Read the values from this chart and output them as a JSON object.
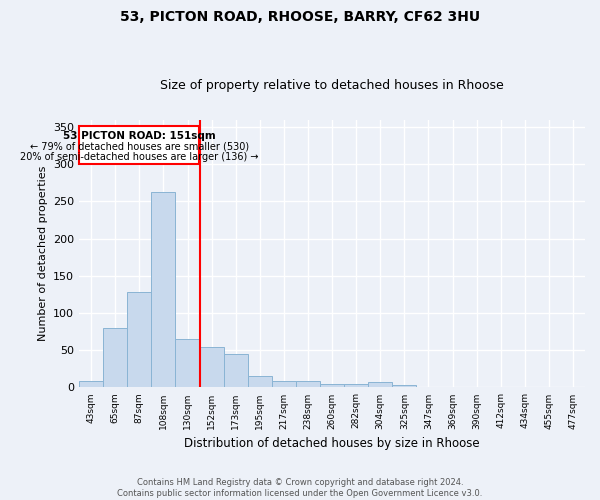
{
  "title1": "53, PICTON ROAD, RHOOSE, BARRY, CF62 3HU",
  "title2": "Size of property relative to detached houses in Rhoose",
  "xlabel": "Distribution of detached houses by size in Rhoose",
  "ylabel": "Number of detached properties",
  "bin_labels": [
    "43sqm",
    "65sqm",
    "87sqm",
    "108sqm",
    "130sqm",
    "152sqm",
    "173sqm",
    "195sqm",
    "217sqm",
    "238sqm",
    "260sqm",
    "282sqm",
    "304sqm",
    "325sqm",
    "347sqm",
    "369sqm",
    "390sqm",
    "412sqm",
    "434sqm",
    "455sqm",
    "477sqm"
  ],
  "bar_heights": [
    8,
    80,
    128,
    263,
    65,
    55,
    45,
    15,
    8,
    8,
    5,
    5,
    7,
    3,
    1,
    0,
    0,
    0,
    0,
    0,
    1
  ],
  "bar_color": "#c8d9ed",
  "bar_edge_color": "#8ab4d4",
  "bg_color": "#edf1f8",
  "grid_color": "#ffffff",
  "annotation_text1": "53 PICTON ROAD: 151sqm",
  "annotation_text2": "← 79% of detached houses are smaller (530)",
  "annotation_text3": "20% of semi-detached houses are larger (136) →",
  "annotation_box_color": "white",
  "annotation_border_color": "red",
  "vline_color": "red",
  "footer1": "Contains HM Land Registry data © Crown copyright and database right 2024.",
  "footer2": "Contains public sector information licensed under the Open Government Licence v3.0.",
  "ylim": [
    0,
    360
  ],
  "yticks": [
    0,
    50,
    100,
    150,
    200,
    250,
    300,
    350
  ],
  "vline_x": 4.5,
  "figsize": [
    6.0,
    5.0
  ],
  "dpi": 100
}
